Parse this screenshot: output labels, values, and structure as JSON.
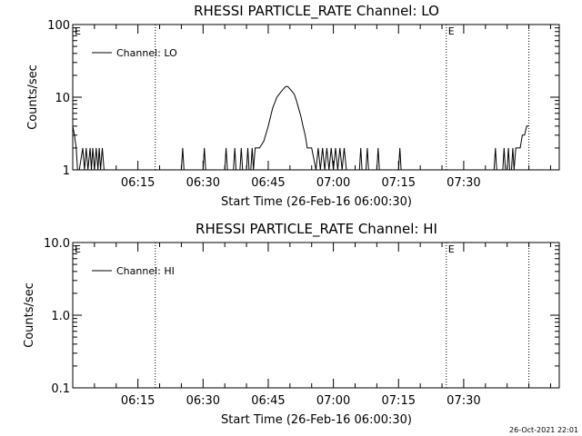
{
  "footer": {
    "timestamp": "26-Oct-2021 22:01"
  },
  "chart_data": [
    {
      "type": "line",
      "title": "RHESSI PARTICLE_RATE Channel: LO",
      "xlabel": "Start Time (26-Feb-16 06:00:30)",
      "ylabel": "Counts/sec",
      "yscale": "log",
      "ylim": [
        1,
        100
      ],
      "yticks": [
        1,
        10,
        100
      ],
      "ytick_labels": [
        "1",
        "10",
        "100"
      ],
      "xlim_min": [
        0,
        112
      ],
      "xticks_min": [
        15,
        30,
        45,
        60,
        75,
        90
      ],
      "xtick_labels": [
        "06:15",
        "06:30",
        "06:45",
        "07:00",
        "07:15",
        "07:30"
      ],
      "legend": {
        "entries": [
          "Channel: LO"
        ],
        "position": "top-left"
      },
      "markers": [
        {
          "label": "E",
          "x_min": 0
        },
        {
          "label": "",
          "x_min": 19
        },
        {
          "label": "E",
          "x_min": 86
        },
        {
          "label": "",
          "x_min": 105
        }
      ],
      "series": [
        {
          "name": "Channel: LO",
          "x": [
            0,
            0.4,
            0.8,
            1.1,
            1.5,
            2.3,
            2.7,
            3.1,
            3.5,
            4,
            4.3,
            4.6,
            5.0,
            5.4,
            5.8,
            6.1,
            6.4,
            6.8,
            7.2,
            25,
            25.3,
            25.6,
            30,
            30.3,
            30.6,
            35,
            35.3,
            35.6,
            37,
            37.3,
            37.6,
            38.5,
            38.8,
            39.1,
            40,
            40.3,
            40.6,
            41,
            41.3,
            41.6,
            42,
            43,
            44,
            45,
            46,
            47,
            48,
            48.5,
            49,
            49.5,
            50,
            50.5,
            51,
            51.5,
            52,
            52.5,
            53,
            53.5,
            54,
            55,
            56,
            56.5,
            57,
            57.5,
            58,
            58.5,
            59,
            59.5,
            60,
            60.5,
            61,
            61.5,
            62,
            62.5,
            63,
            63.5,
            66,
            66.3,
            66.6,
            67.5,
            67.8,
            68.1,
            70,
            70.3,
            70.6,
            75,
            75.3,
            75.6,
            97,
            97.3,
            97.6,
            99,
            99.3,
            99.6,
            100,
            100.3,
            100.6,
            101,
            101.3,
            101.6,
            102,
            102.5,
            103,
            103.5,
            104,
            104.5,
            105
          ],
          "y": [
            4,
            3,
            2,
            1,
            1,
            2,
            1,
            2,
            1,
            2,
            1,
            2,
            1,
            2,
            1,
            2,
            1,
            2,
            1,
            1,
            2,
            1,
            1,
            2,
            1,
            1,
            2,
            1,
            1,
            2,
            1,
            1,
            2,
            1,
            1,
            2,
            1,
            1,
            2,
            1,
            2,
            2,
            2.5,
            4,
            7,
            10,
            12,
            13,
            14,
            14,
            13,
            12,
            11,
            9,
            7,
            5.5,
            4,
            3,
            2,
            2,
            1,
            2,
            1,
            2,
            1,
            2,
            1,
            2,
            1,
            2,
            1,
            2,
            1,
            2,
            1,
            1,
            1,
            2,
            1,
            1,
            2,
            1,
            1,
            2,
            1,
            1,
            2,
            1,
            1,
            2,
            1,
            1,
            2,
            1,
            1,
            2,
            1,
            1,
            2,
            1,
            2,
            2,
            2,
            3,
            3,
            4,
            4
          ]
        }
      ]
    },
    {
      "type": "line",
      "title": "RHESSI PARTICLE_RATE Channel: HI",
      "xlabel": "Start Time (26-Feb-16 06:00:30)",
      "ylabel": "Counts/sec",
      "yscale": "log",
      "ylim": [
        0.1,
        10
      ],
      "yticks": [
        0.1,
        1,
        10
      ],
      "ytick_labels": [
        "0.1",
        "1.0",
        "10.0"
      ],
      "xlim_min": [
        0,
        112
      ],
      "xticks_min": [
        15,
        30,
        45,
        60,
        75,
        90
      ],
      "xtick_labels": [
        "06:15",
        "06:30",
        "06:45",
        "07:00",
        "07:15",
        "07:30"
      ],
      "legend": {
        "entries": [
          "Channel: HI"
        ],
        "position": "top-left"
      },
      "markers": [
        {
          "label": "E",
          "x_min": 0
        },
        {
          "label": "",
          "x_min": 19
        },
        {
          "label": "E",
          "x_min": 86
        },
        {
          "label": "",
          "x_min": 105
        }
      ],
      "series": [
        {
          "name": "Channel: HI",
          "x": [],
          "y": []
        }
      ]
    }
  ]
}
